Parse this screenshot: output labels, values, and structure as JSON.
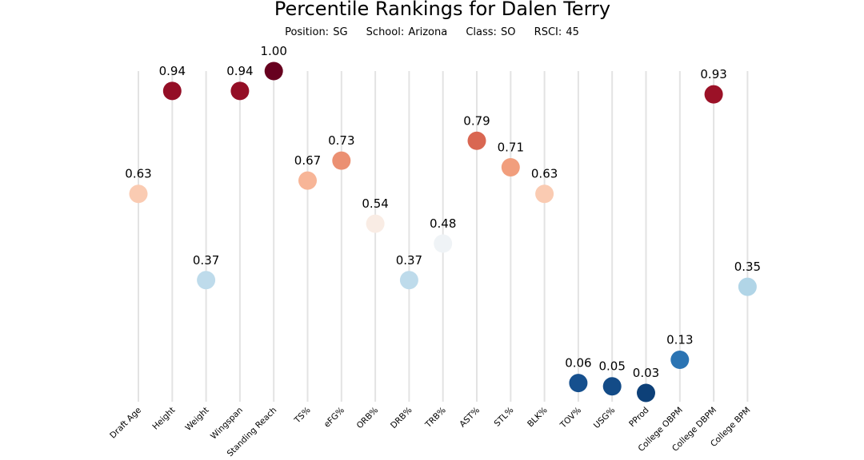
{
  "header": {
    "title": "Percentile Rankings for Dalen Terry",
    "position": "Position: SG",
    "school": "School: Arizona",
    "class": "Class: SO",
    "rsci": "RSCI: 45"
  },
  "chart_data": {
    "type": "scatter",
    "title": "Percentile Rankings for Dalen Terry",
    "categories": [
      "Draft Age",
      "Height",
      "Weight",
      "Wingspan",
      "Standing Reach",
      "TS%",
      "eFG%",
      "ORB%",
      "DRB%",
      "TRB%",
      "AST%",
      "STL%",
      "BLK%",
      "TOV%",
      "USG%",
      "PProd",
      "College OBPM",
      "College DBPM",
      "College BPM"
    ],
    "values": [
      0.63,
      0.94,
      0.37,
      0.94,
      1.0,
      0.67,
      0.73,
      0.54,
      0.37,
      0.48,
      0.79,
      0.71,
      0.63,
      0.06,
      0.05,
      0.03,
      0.13,
      0.93,
      0.35
    ],
    "value_labels": [
      "0.63",
      "0.94",
      "0.37",
      "0.94",
      "1.00",
      "0.67",
      "0.73",
      "0.54",
      "0.37",
      "0.48",
      "0.79",
      "0.71",
      "0.63",
      "0.06",
      "0.05",
      "0.03",
      "0.13",
      "0.93",
      "0.35"
    ],
    "ylim": [
      0,
      1
    ],
    "colormap": "RdBu_r",
    "grid": false,
    "legend": "none"
  }
}
